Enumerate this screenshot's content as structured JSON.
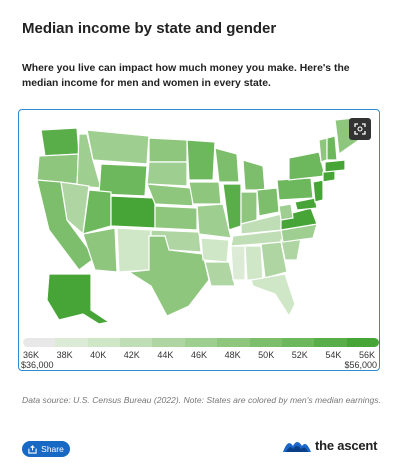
{
  "header": {
    "title": "Median income by state and gender",
    "subtitle": "Where you live can impact how much money you make. Here's the median income for men and women in every state."
  },
  "footer": {
    "source": "Data source: U.S. Census Bureau (2022). Note: States are colored by men's median earnings.",
    "share_label": "Share",
    "brand": "the ascent"
  },
  "chart_data": {
    "type": "choropleth-map",
    "title": "Median income by state and gender",
    "legend": {
      "ticks": [
        "36K",
        "38K",
        "40K",
        "42K",
        "44K",
        "46K",
        "48K",
        "50K",
        "52K",
        "54K",
        "56K"
      ],
      "min_label": "$36,000",
      "max_label": "$56,000",
      "range": [
        36000,
        56000
      ],
      "colors": [
        "#e8e8e8",
        "#dcebd6",
        "#cfe6c7",
        "#bfdeb5",
        "#afd6a2",
        "#9fcf90",
        "#8ec67e",
        "#7dbe6c",
        "#6db75c",
        "#5aae4a",
        "#46a536"
      ]
    }
  },
  "colors": {
    "accent": "#2e8bd0",
    "share_bg": "#1769c4",
    "map_dark": "#46a536",
    "map_light": "#d6ecd0"
  },
  "icons": {
    "zoom": "zoom-fit-icon",
    "share": "share-icon",
    "logo": "the-ascent-logo-icon"
  }
}
